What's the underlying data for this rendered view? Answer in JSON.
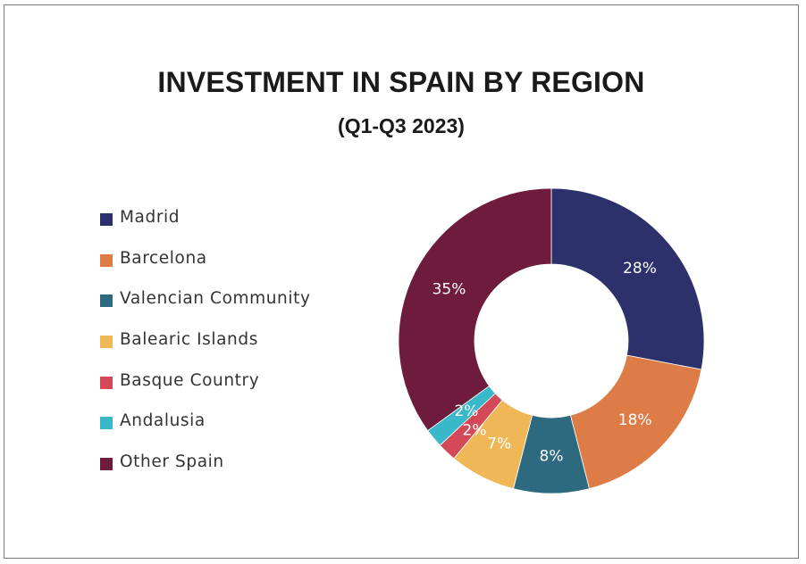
{
  "title": "INVESTMENT IN SPAIN BY REGION",
  "subtitle": "(Q1-Q3 2023)",
  "legend": {
    "items": [
      {
        "label": "Madrid",
        "color": "#2d316b"
      },
      {
        "label": "Barcelona",
        "color": "#dd7c47"
      },
      {
        "label": "Valencian Community",
        "color": "#2d6a80"
      },
      {
        "label": "Balearic Islands",
        "color": "#efb756"
      },
      {
        "label": "Basque Country",
        "color": "#d34957"
      },
      {
        "label": "Andalusia",
        "color": "#38b8c9"
      },
      {
        "label": "Other Spain",
        "color": "#6f1b3c"
      }
    ]
  },
  "slice_labels": [
    "28%",
    "18%",
    "8%",
    "7%",
    "2%",
    "2%",
    "35%"
  ],
  "chart_data": {
    "type": "pie",
    "subtype": "donut",
    "title": "INVESTMENT IN SPAIN BY REGION",
    "subtitle": "(Q1-Q3 2023)",
    "categories": [
      "Madrid",
      "Barcelona",
      "Valencian Community",
      "Balearic Islands",
      "Basque Country",
      "Andalusia",
      "Other Spain"
    ],
    "values": [
      28,
      18,
      8,
      7,
      2,
      2,
      35
    ],
    "unit": "%",
    "colors": [
      "#2d316b",
      "#dd7c47",
      "#2d6a80",
      "#efb756",
      "#d34957",
      "#38b8c9",
      "#6f1b3c"
    ],
    "start_angle": "12 o'clock",
    "direction": "clockwise",
    "data_labels": true,
    "legend_position": "left"
  }
}
